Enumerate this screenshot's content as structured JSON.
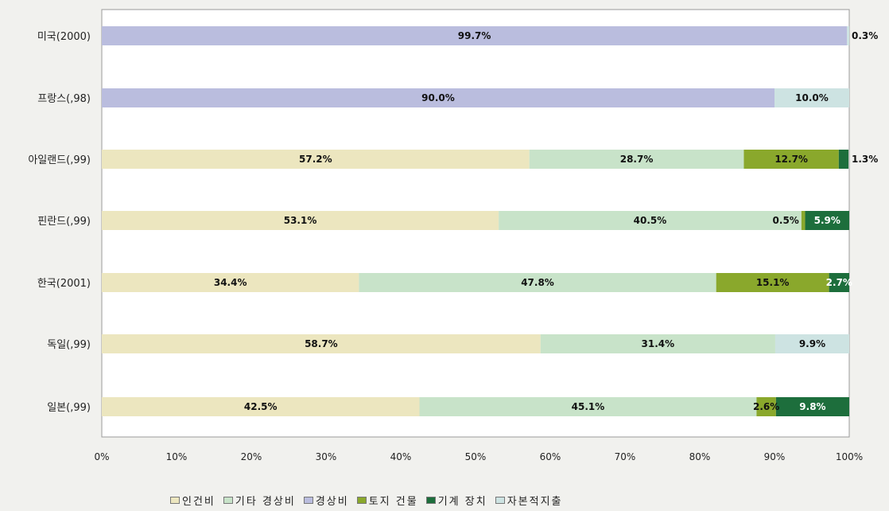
{
  "chart_data": {
    "type": "bar",
    "orientation": "horizontal",
    "stacked": "percent",
    "categories": [
      "미국(2000)",
      "프랑스(,98)",
      "아일랜드(,99)",
      "핀란드(,99)",
      "한국(2001)",
      "독일(,99)",
      "일본(,99)"
    ],
    "series": [
      {
        "name": "인건비",
        "color": "#ece6bf",
        "values": [
          null,
          null,
          57.2,
          53.1,
          34.4,
          58.7,
          42.5
        ]
      },
      {
        "name": "기타 경상비",
        "color": "#c8e3c9",
        "values": [
          null,
          null,
          28.7,
          40.5,
          47.8,
          31.4,
          45.1
        ]
      },
      {
        "name": "경상비",
        "color": "#babdde",
        "values": [
          99.7,
          90.0,
          null,
          null,
          null,
          null,
          null
        ]
      },
      {
        "name": "토지 건물",
        "color": "#8aa82c",
        "values": [
          null,
          null,
          12.7,
          0.5,
          15.1,
          null,
          2.6
        ]
      },
      {
        "name": "기계 장치",
        "color": "#1d6e3c",
        "values": [
          null,
          null,
          1.3,
          5.9,
          2.7,
          null,
          9.8
        ]
      },
      {
        "name": "자본적지출",
        "color": "#cde3e2",
        "values": [
          0.3,
          10.0,
          null,
          null,
          null,
          9.9,
          null
        ]
      }
    ],
    "data_labels": [
      [
        "",
        "",
        "99.7%",
        "",
        "",
        "0.3%"
      ],
      [
        "",
        "",
        "90.0%",
        "",
        "",
        "10.0%"
      ],
      [
        "57.2%",
        "28.7%",
        "",
        "12.7%",
        "1.3%",
        ""
      ],
      [
        "53.1%",
        "40.5%",
        "",
        "0.5%",
        "5.9%",
        ""
      ],
      [
        "34.4%",
        "47.8%",
        "",
        "15.1%",
        "2.7%",
        ""
      ],
      [
        "58.7%",
        "31.4%",
        "",
        "",
        "",
        "9.9%"
      ],
      [
        "42.5%",
        "45.1%",
        "",
        "2.6%",
        "9.8%",
        ""
      ]
    ],
    "xlim": [
      0,
      100
    ],
    "x_ticks": [
      "0%",
      "10%",
      "20%",
      "30%",
      "40%",
      "50%",
      "60%",
      "70%",
      "80%",
      "90%",
      "100%"
    ],
    "grid": false,
    "legend_position": "bottom",
    "title": "",
    "xlabel": "",
    "ylabel": ""
  }
}
